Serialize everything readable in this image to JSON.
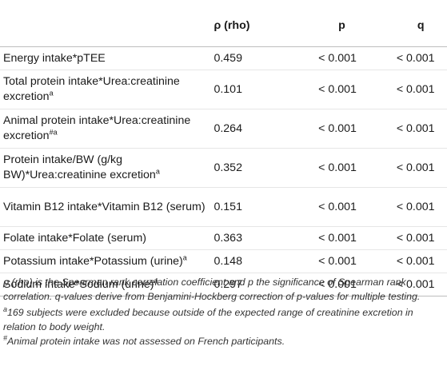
{
  "table": {
    "headers": {
      "label": "",
      "rho": "ρ (rho)",
      "p": "p",
      "q": "q"
    },
    "rows": [
      {
        "label": "Energy intake*pTEE",
        "sup": "",
        "rho": "0.459",
        "p": "< 0.001",
        "q": "< 0.001"
      },
      {
        "label": "Total protein intake*Urea:creatinine excretion",
        "sup": "a",
        "rho": "0.101",
        "p": "< 0.001",
        "q": "< 0.001"
      },
      {
        "label": "Animal protein intake*Urea:creatinine excretion",
        "sup": "#a",
        "rho": "0.264",
        "p": "< 0.001",
        "q": "< 0.001"
      },
      {
        "label": "Protein intake/BW (g/kg BW)*Urea:creatinine excretion",
        "sup": "a",
        "rho": "0.352",
        "p": "< 0.001",
        "q": "< 0.001"
      },
      {
        "label": "Vitamin B12 intake*Vitamin B12 (serum)",
        "sup": "",
        "rho": "0.151",
        "p": "< 0.001",
        "q": "< 0.001"
      },
      {
        "label": "Folate intake*Folate (serum)",
        "sup": "",
        "rho": "0.363",
        "p": "< 0.001",
        "q": "< 0.001"
      },
      {
        "label": "Potassium intake*Potassium (urine)",
        "sup": "a",
        "rho": "0.148",
        "p": "< 0.001",
        "q": "< 0.001"
      },
      {
        "label": "Sodium intake*Sodium (urine)",
        "sup": "a",
        "rho": "0.297",
        "p": "< 0.001",
        "q": "< 0.001"
      }
    ]
  },
  "notes": {
    "rho_note": "ρ (rho) is the Spearman rank correlation coefficient and p the significance of Spearman rank correlation. q-values derive from Benjamini-Hockberg correction of p-values for multiple testing.",
    "a_mark": "a",
    "a_note": "169 subjects were excluded because outside of the expected range of creatinine excretion in relation to body weight.",
    "hash_mark": "#",
    "hash_note": "Animal protein intake was not assessed on French participants."
  }
}
